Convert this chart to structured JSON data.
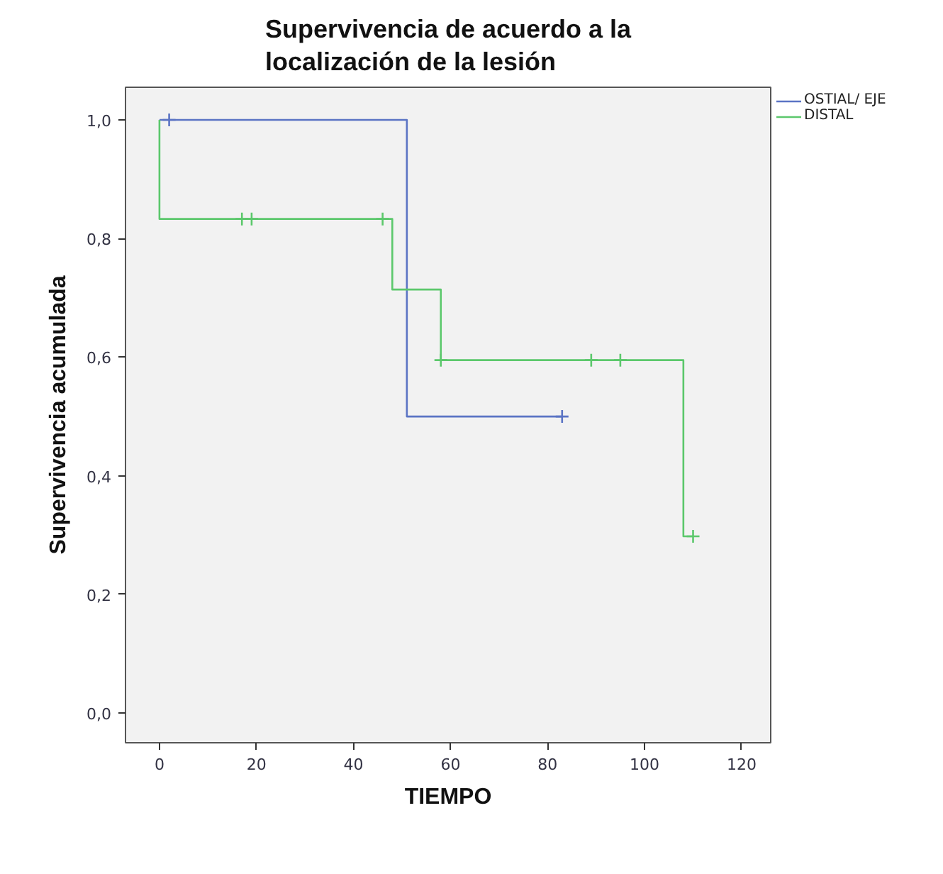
{
  "chart_data": {
    "type": "step",
    "title": "Supervivencia de acuerdo a la localización de la lesión",
    "xlabel": "TIEMPO",
    "ylabel": "Supervivencia acumulada",
    "xlim": [
      -7,
      126
    ],
    "ylim": [
      -0.05,
      1.055
    ],
    "xticks": [
      0,
      20,
      40,
      60,
      80,
      100,
      120
    ],
    "yticks": [
      {
        "value": 0,
        "label": "0,0"
      },
      {
        "value": 0.2,
        "label": "0,2"
      },
      {
        "value": 0.4,
        "label": "0,4"
      },
      {
        "value": 0.6,
        "label": "0,6"
      },
      {
        "value": 0.8,
        "label": "0,8"
      },
      {
        "value": 1,
        "label": "1,0"
      }
    ],
    "grid": false,
    "legend": "right",
    "series": [
      {
        "name": "OSTIAL/ EJE",
        "color": "#5b74c4",
        "x": [
          0,
          51,
          83
        ],
        "values": [
          1.0,
          0.5,
          0.5
        ]
      },
      {
        "name": "DISTAL",
        "color": "#5cc86c",
        "x": [
          0,
          0,
          48,
          58,
          108,
          110
        ],
        "values": [
          1.0,
          0.833,
          0.714,
          0.595,
          0.298,
          0.298
        ]
      },
      {
        "type": "scatter",
        "marker": "cross",
        "color": "#5b74c4",
        "x": [
          2,
          83
        ],
        "values": [
          1.0,
          0.5
        ]
      },
      {
        "type": "scatter",
        "marker": "cross",
        "color": "#5cc86c",
        "x": [
          17,
          19,
          46,
          58,
          89,
          95,
          110
        ],
        "values": [
          0.833,
          0.833,
          0.833,
          0.595,
          0.595,
          0.595,
          0.298
        ]
      }
    ]
  }
}
